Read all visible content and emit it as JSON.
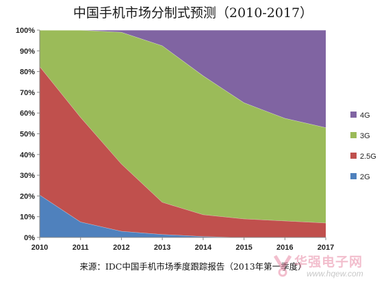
{
  "chart_data": {
    "type": "area",
    "stacked": true,
    "percent": true,
    "title": "中国手机市场分制式预测（2010-2017）",
    "categories": [
      "2010",
      "2011",
      "2012",
      "2013",
      "2014",
      "2015",
      "2016",
      "2017"
    ],
    "ylim": [
      0,
      100
    ],
    "yticks": [
      "0%",
      "10%",
      "20%",
      "30%",
      "40%",
      "50%",
      "60%",
      "70%",
      "80%",
      "90%",
      "100%"
    ],
    "grid": false,
    "legend_position": "right",
    "series": [
      {
        "name": "2G",
        "color": "#4f81bd",
        "values": [
          20.5,
          7.5,
          3,
          1.5,
          0.5,
          0,
          0,
          0
        ]
      },
      {
        "name": "2.5G",
        "color": "#c0504d",
        "values": [
          62,
          50.5,
          32.5,
          15.5,
          10.5,
          9,
          8,
          7
        ]
      },
      {
        "name": "3G",
        "color": "#9bbb59",
        "values": [
          17.5,
          42,
          63.5,
          75.5,
          67,
          56,
          49.5,
          46
        ]
      },
      {
        "name": "4G",
        "color": "#8064a2",
        "values": [
          0,
          0,
          1,
          7.5,
          22,
          35,
          42.5,
          47
        ]
      }
    ]
  },
  "source_note": "来源：IDC中国手机市场季度跟踪报告（2013年第一季度）",
  "watermark": {
    "name": "华强电子网",
    "url": "www.hqew.com"
  }
}
